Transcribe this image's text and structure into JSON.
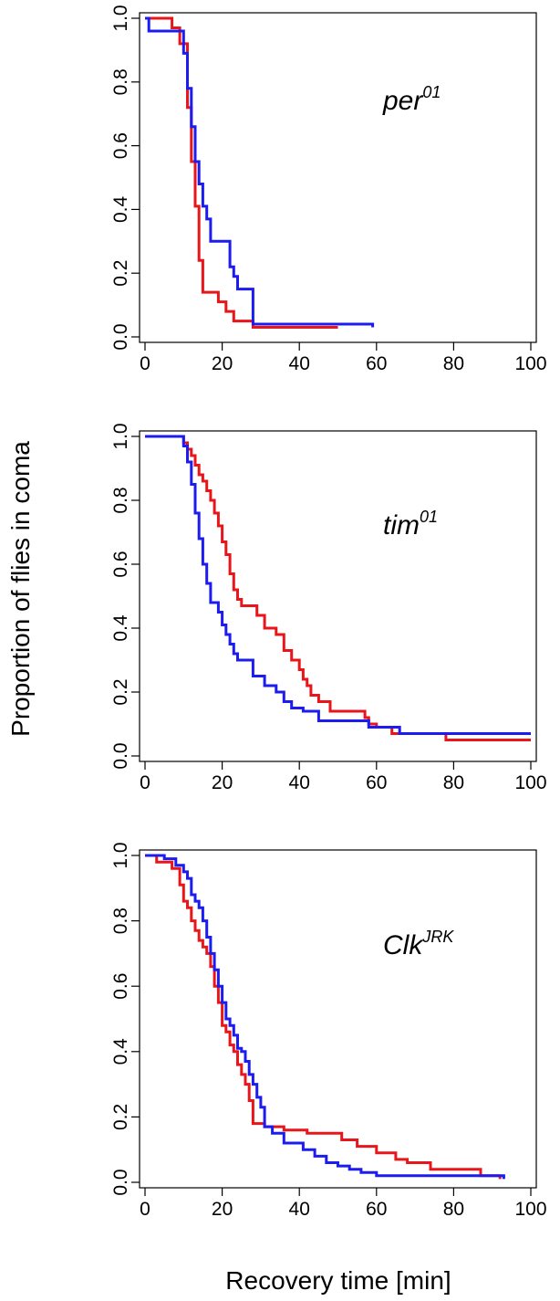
{
  "colors": {
    "red": "#e8161a",
    "blue": "#1c1cf0"
  },
  "figure": {
    "ylabel": "Proportion of flies in coma",
    "xlabel": "Recovery time [min]"
  },
  "chart_data": [
    {
      "type": "line",
      "step": true,
      "genotype_base": "per",
      "genotype_sup": "01",
      "xlim": [
        0,
        100
      ],
      "ylim": [
        0,
        1
      ],
      "xticks": [
        "0",
        "20",
        "40",
        "60",
        "80",
        "100"
      ],
      "yticks": [
        "0.0",
        "0.2",
        "0.4",
        "0.6",
        "0.8",
        "1.0"
      ],
      "series": [
        {
          "color": "red",
          "x": [
            0,
            7,
            9,
            11,
            12,
            13,
            14,
            15,
            16,
            19,
            21,
            23,
            25,
            28,
            30,
            50
          ],
          "y": [
            1.0,
            0.97,
            0.92,
            0.72,
            0.55,
            0.41,
            0.24,
            0.14,
            0.14,
            0.11,
            0.08,
            0.05,
            0.05,
            0.03,
            0.03,
            0.03
          ]
        },
        {
          "color": "blue",
          "x": [
            0,
            1,
            10,
            11,
            12,
            13,
            14,
            15,
            16,
            17,
            19,
            22,
            23,
            24,
            28,
            59
          ],
          "y": [
            1.0,
            0.96,
            0.89,
            0.78,
            0.66,
            0.55,
            0.48,
            0.41,
            0.37,
            0.3,
            0.3,
            0.22,
            0.19,
            0.15,
            0.04,
            0.03
          ]
        }
      ]
    },
    {
      "type": "line",
      "step": true,
      "genotype_base": "tim",
      "genotype_sup": "01",
      "xlim": [
        0,
        100
      ],
      "ylim": [
        0,
        1
      ],
      "xticks": [
        "0",
        "20",
        "40",
        "60",
        "80",
        "100"
      ],
      "yticks": [
        "0.0",
        "0.2",
        "0.4",
        "0.6",
        "0.8",
        "1.0"
      ],
      "series": [
        {
          "color": "red",
          "x": [
            0,
            10,
            11,
            12,
            13,
            14,
            15,
            16,
            17,
            18,
            19,
            20,
            21,
            22,
            23,
            24,
            25,
            26,
            29,
            31,
            34,
            36,
            38,
            40,
            41,
            42,
            43,
            45,
            48,
            57,
            58,
            60,
            64,
            78,
            100
          ],
          "y": [
            1.0,
            0.98,
            0.96,
            0.94,
            0.91,
            0.88,
            0.86,
            0.83,
            0.8,
            0.76,
            0.72,
            0.67,
            0.63,
            0.57,
            0.52,
            0.49,
            0.47,
            0.47,
            0.44,
            0.4,
            0.38,
            0.33,
            0.3,
            0.27,
            0.24,
            0.22,
            0.19,
            0.17,
            0.14,
            0.12,
            0.1,
            0.09,
            0.07,
            0.05,
            0.05
          ]
        },
        {
          "color": "blue",
          "x": [
            0,
            10,
            11,
            12,
            13,
            14,
            15,
            16,
            17,
            18,
            19,
            20,
            21,
            22,
            23,
            24,
            25,
            28,
            31,
            34,
            36,
            38,
            41,
            45,
            50,
            58,
            66,
            100
          ],
          "y": [
            1.0,
            0.97,
            0.92,
            0.85,
            0.76,
            0.68,
            0.6,
            0.54,
            0.48,
            0.48,
            0.45,
            0.41,
            0.38,
            0.35,
            0.32,
            0.3,
            0.3,
            0.25,
            0.22,
            0.2,
            0.17,
            0.15,
            0.14,
            0.11,
            0.11,
            0.09,
            0.07,
            0.07
          ]
        }
      ]
    },
    {
      "type": "line",
      "step": true,
      "genotype_base": "Clk",
      "genotype_sup": "JRK",
      "xlim": [
        0,
        100
      ],
      "ylim": [
        0,
        1
      ],
      "xticks": [
        "0",
        "20",
        "40",
        "60",
        "80",
        "100"
      ],
      "yticks": [
        "0.0",
        "0.2",
        "0.4",
        "0.6",
        "0.8",
        "1.0"
      ],
      "series": [
        {
          "color": "red",
          "x": [
            0,
            3,
            7,
            9,
            10,
            11,
            12,
            13,
            14,
            15,
            16,
            17,
            18,
            19,
            20,
            21,
            22,
            23,
            24,
            25,
            26,
            27,
            28,
            31,
            36,
            42,
            51,
            55,
            60,
            65,
            68,
            74,
            87,
            92
          ],
          "y": [
            1.0,
            0.98,
            0.96,
            0.91,
            0.86,
            0.84,
            0.8,
            0.77,
            0.74,
            0.72,
            0.7,
            0.66,
            0.6,
            0.55,
            0.48,
            0.46,
            0.42,
            0.4,
            0.36,
            0.33,
            0.3,
            0.25,
            0.18,
            0.17,
            0.16,
            0.15,
            0.13,
            0.11,
            0.09,
            0.07,
            0.06,
            0.04,
            0.02,
            0.01
          ]
        },
        {
          "color": "blue",
          "x": [
            0,
            5,
            8,
            10,
            11,
            12,
            13,
            14,
            15,
            16,
            17,
            18,
            19,
            20,
            21,
            22,
            23,
            24,
            25,
            26,
            27,
            28,
            29,
            30,
            31,
            33,
            36,
            41,
            44,
            47,
            50,
            53,
            56,
            60,
            93
          ],
          "y": [
            1.0,
            0.99,
            0.97,
            0.95,
            0.93,
            0.88,
            0.86,
            0.84,
            0.8,
            0.75,
            0.7,
            0.65,
            0.6,
            0.55,
            0.5,
            0.48,
            0.45,
            0.41,
            0.4,
            0.37,
            0.33,
            0.3,
            0.26,
            0.23,
            0.17,
            0.15,
            0.12,
            0.1,
            0.08,
            0.06,
            0.05,
            0.04,
            0.03,
            0.02,
            0.01
          ]
        }
      ]
    }
  ]
}
